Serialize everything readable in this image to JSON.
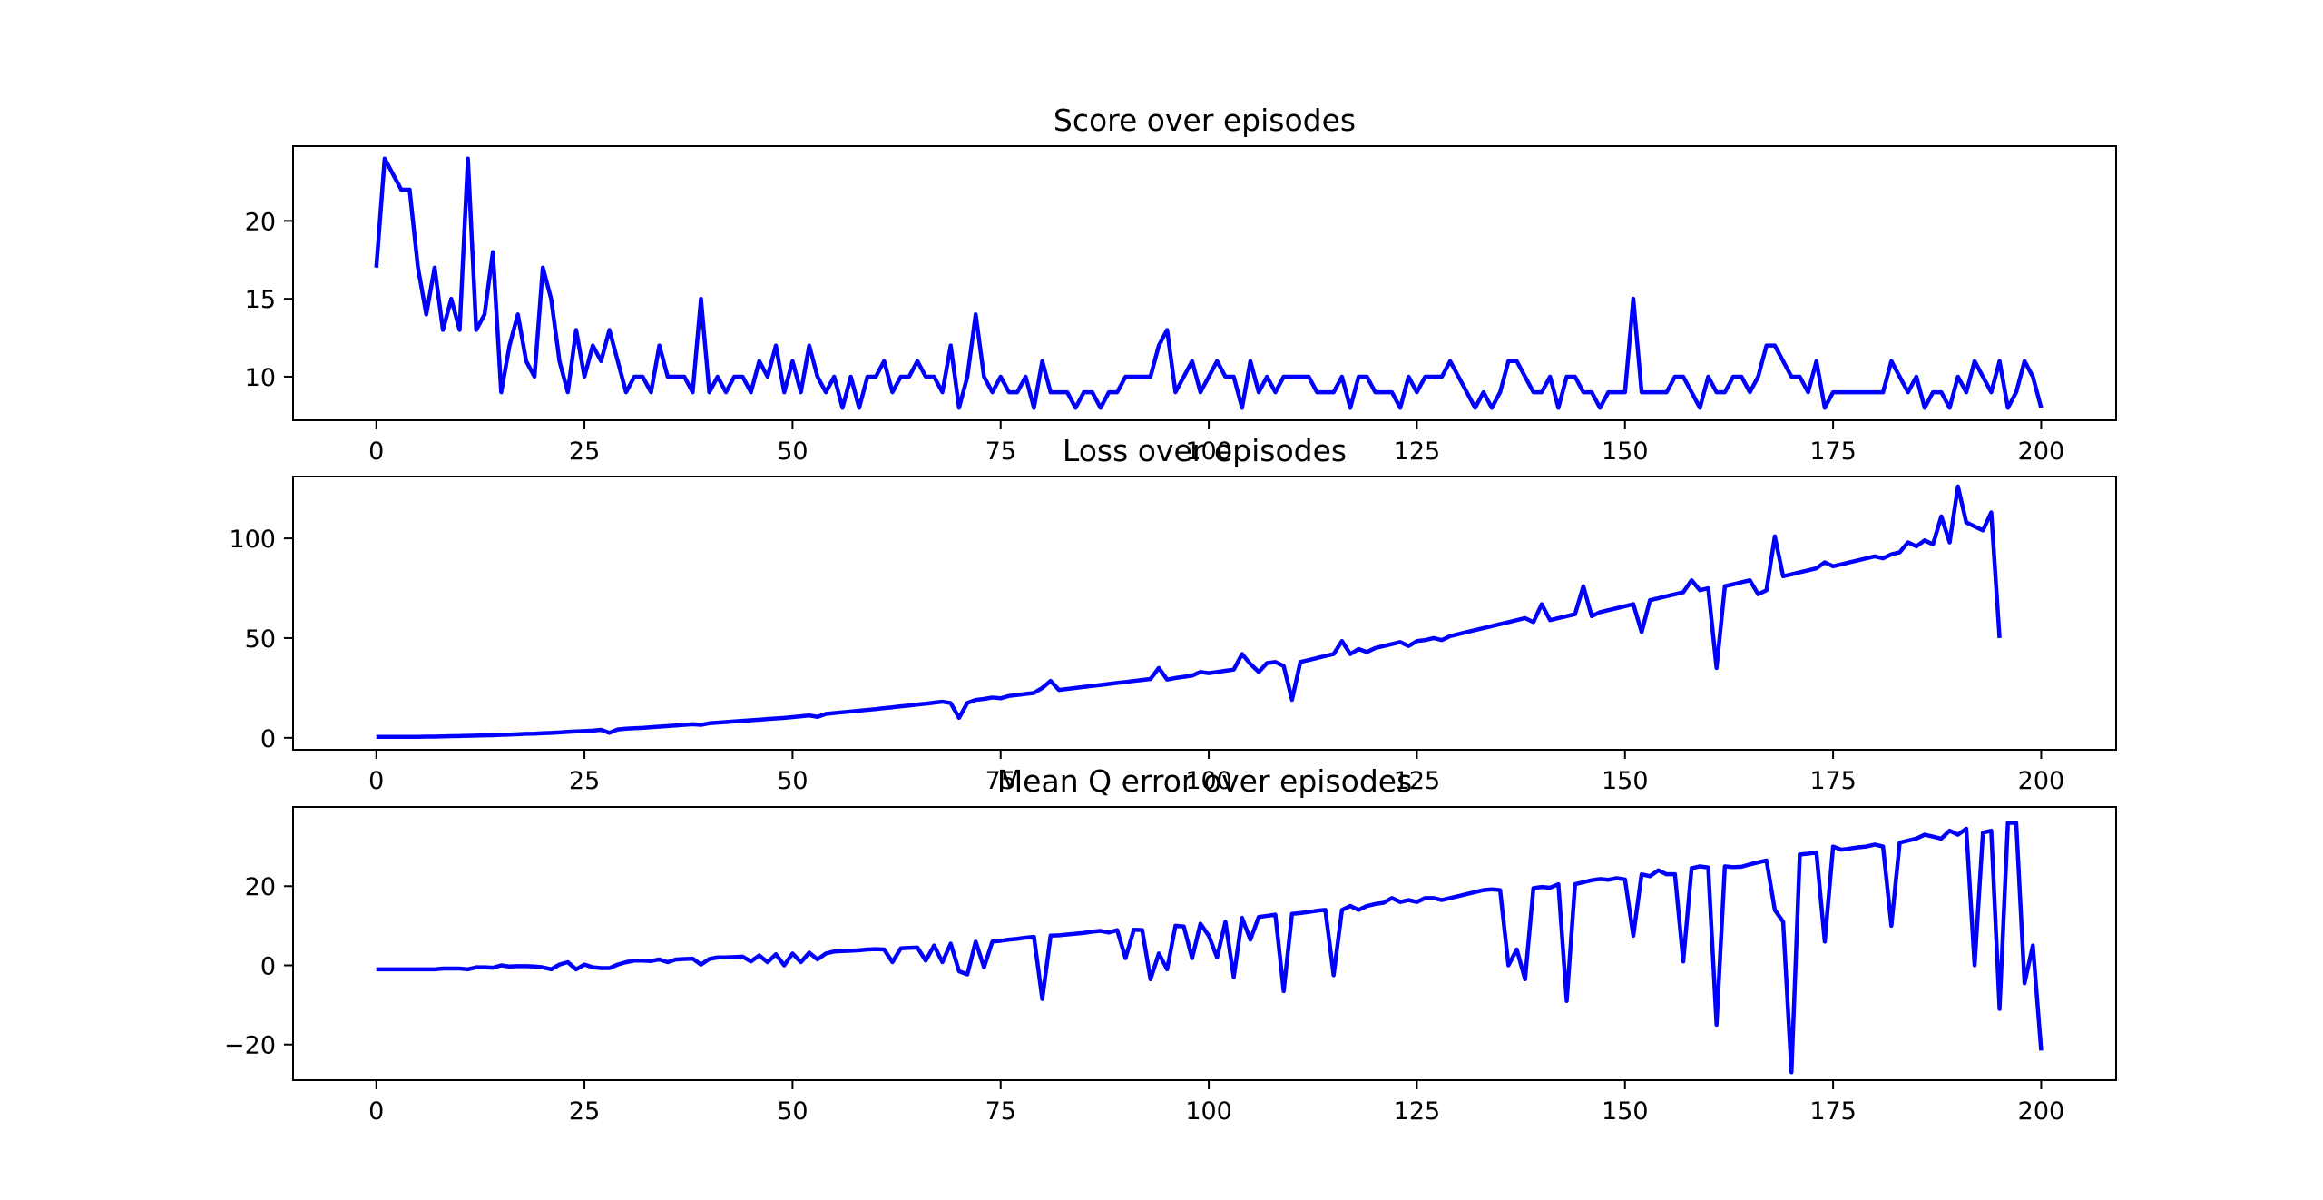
{
  "chart_data": [
    {
      "type": "line",
      "title": "Score over episodes",
      "xlabel": "",
      "ylabel": "",
      "xlim": [
        -10,
        209
      ],
      "ylim": [
        7.2,
        24.8
      ],
      "xticks": [
        "0",
        "25",
        "50",
        "75",
        "100",
        "125",
        "150",
        "175",
        "200"
      ],
      "yticks": [
        "10",
        "15",
        "20"
      ],
      "grid": false,
      "color": "#0000ff",
      "x_start": 0,
      "values": [
        17,
        24,
        23,
        22,
        22,
        17,
        14,
        17,
        13,
        15,
        13,
        24,
        13,
        14,
        18,
        9,
        12,
        14,
        11,
        10,
        17,
        15,
        11,
        9,
        13,
        10,
        12,
        11,
        13,
        11,
        9,
        10,
        10,
        9,
        12,
        10,
        10,
        10,
        9,
        15,
        9,
        10,
        9,
        10,
        10,
        9,
        11,
        10,
        12,
        9,
        11,
        9,
        12,
        10,
        9,
        10,
        8,
        10,
        8,
        10,
        10,
        11,
        9,
        10,
        10,
        11,
        10,
        10,
        9,
        12,
        8,
        10,
        14,
        10,
        9,
        10,
        9,
        9,
        10,
        8,
        11,
        9,
        9,
        9,
        8,
        9,
        9,
        8,
        9,
        9,
        10,
        10,
        10,
        10,
        12,
        13,
        9,
        10,
        11,
        9,
        10,
        11,
        10,
        10,
        8,
        11,
        9,
        10,
        9,
        10,
        10,
        10,
        10,
        9,
        9,
        9,
        10,
        8,
        10,
        10,
        9,
        9,
        9,
        8,
        10,
        9,
        10,
        10,
        10,
        11,
        10,
        9,
        8,
        9,
        8,
        9,
        11,
        11,
        10,
        9,
        9,
        10,
        8,
        10,
        10,
        9,
        9,
        8,
        9,
        9,
        9,
        15,
        9,
        9,
        9,
        9,
        10,
        10,
        9,
        8,
        10,
        9,
        9,
        10,
        10,
        9,
        10,
        12,
        12,
        11,
        10,
        10,
        9,
        11,
        8,
        9,
        9,
        9,
        9,
        9,
        9,
        9,
        11,
        10,
        9,
        10,
        8,
        9,
        9,
        8,
        10,
        9,
        11,
        10,
        9,
        11,
        8,
        9,
        11,
        10,
        8
      ]
    },
    {
      "type": "line",
      "title": "Loss over episodes",
      "xlabel": "",
      "ylabel": "",
      "xlim": [
        -10,
        209
      ],
      "ylim": [
        -6,
        131
      ],
      "xticks": [
        "0",
        "25",
        "50",
        "75",
        "100",
        "125",
        "150",
        "175",
        "200"
      ],
      "yticks": [
        "0",
        "50",
        "100"
      ],
      "grid": false,
      "color": "#0000ff",
      "x_start": 0,
      "values": [
        0.5,
        0.5,
        0.5,
        0.5,
        0.5,
        0.5,
        0.6,
        0.6,
        0.7,
        0.8,
        0.9,
        1,
        1.1,
        1.2,
        1.3,
        1.5,
        1.6,
        1.8,
        2,
        2.1,
        2.3,
        2.5,
        2.7,
        3,
        3.2,
        3.4,
        3.6,
        4,
        2.5,
        4.2,
        4.6,
        4.8,
        5,
        5.3,
        5.6,
        5.9,
        6.2,
        6.5,
        6.8,
        6.5,
        7.3,
        7.6,
        7.9,
        8.2,
        8.5,
        8.8,
        9.1,
        9.4,
        9.7,
        10,
        10.4,
        10.8,
        11.2,
        10.5,
        12,
        12.4,
        12.8,
        13.2,
        13.6,
        14,
        14.4,
        14.9,
        15.3,
        15.8,
        16.2,
        16.7,
        17.1,
        17.6,
        18.1,
        17.4,
        10,
        17.5,
        19,
        19.5,
        20.2,
        19.8,
        21,
        21.5,
        22,
        22.5,
        25,
        28.5,
        24,
        24.5,
        25,
        25.5,
        26,
        26.5,
        27,
        27.5,
        28,
        28.5,
        29,
        29.5,
        35,
        29.2,
        30,
        30.6,
        31.2,
        33,
        32.4,
        33,
        33.6,
        34.2,
        42,
        37,
        33,
        37.5,
        38,
        36,
        19,
        38,
        39,
        40,
        41,
        42,
        48.5,
        42,
        44.5,
        43,
        45,
        46,
        47,
        48,
        46,
        48.5,
        49,
        50,
        49,
        51,
        52,
        53,
        54,
        55,
        56,
        57,
        58,
        59,
        60,
        58,
        67,
        59,
        60,
        61,
        62,
        76,
        61,
        63,
        64,
        65,
        66,
        67,
        53,
        69,
        70,
        71,
        72,
        73,
        79,
        74,
        75,
        35,
        76,
        77,
        78,
        79,
        72,
        74,
        101,
        81,
        82,
        83,
        84,
        85,
        88,
        86,
        87,
        88,
        89,
        90,
        91,
        90,
        92,
        93,
        98,
        96,
        99,
        97,
        111,
        98,
        126,
        108,
        106,
        104,
        113,
        50
      ]
    },
    {
      "type": "line",
      "title": "Mean Q error over episodes",
      "xlabel": "",
      "ylabel": "",
      "xlim": [
        -10,
        209
      ],
      "ylim": [
        -29,
        40
      ],
      "xticks": [
        "0",
        "25",
        "50",
        "75",
        "100",
        "125",
        "150",
        "175",
        "200"
      ],
      "yticks": [
        "−20",
        "0",
        "20"
      ],
      "grid": false,
      "color": "#0000ff",
      "x_start": 0,
      "values": [
        -1,
        -1,
        -1,
        -1,
        -1,
        -1,
        -1,
        -1,
        -0.8,
        -0.8,
        -0.8,
        -1,
        -0.5,
        -0.5,
        -0.6,
        0,
        -0.3,
        -0.2,
        -0.2,
        -0.3,
        -0.5,
        -1,
        0.2,
        0.8,
        -1,
        0.2,
        -0.5,
        -0.7,
        -0.7,
        0.2,
        0.8,
        1.2,
        1.2,
        1.1,
        1.5,
        0.8,
        1.5,
        1.6,
        1.7,
        0.2,
        1.6,
        2,
        2,
        2.1,
        2.2,
        1,
        2.5,
        0.8,
        2.8,
        0,
        3,
        0.8,
        3.2,
        1.5,
        3,
        3.5,
        3.6,
        3.7,
        3.8,
        4,
        4.1,
        4,
        0.8,
        4.3,
        4.4,
        4.5,
        1.2,
        5,
        0.8,
        5.5,
        -1.5,
        -2.3,
        6,
        -0.5,
        6,
        6.2,
        6.5,
        6.7,
        7,
        7.2,
        -8.5,
        7.5,
        7.6,
        7.8,
        8,
        8.2,
        8.5,
        8.7,
        8.3,
        8.9,
        1.8,
        9,
        8.9,
        -3.5,
        3,
        -1,
        10,
        9.8,
        1.8,
        10.5,
        7.5,
        2,
        11,
        -3,
        12,
        6.5,
        12.2,
        12.5,
        12.8,
        -6.5,
        13,
        13.2,
        13.5,
        13.8,
        14,
        -2.5,
        14,
        15,
        14,
        15,
        15.5,
        15.8,
        17,
        16,
        16.5,
        16,
        17,
        17,
        16.5,
        17,
        17.5,
        18,
        18.5,
        19,
        19.2,
        19,
        0,
        4,
        -3.5,
        19.5,
        19.8,
        19.6,
        20.5,
        -9,
        20.5,
        21,
        21.5,
        21.8,
        21.6,
        22,
        21.7,
        7.5,
        23,
        22.5,
        24,
        23,
        23,
        1,
        24.5,
        25,
        24.7,
        -15,
        25,
        24.8,
        24.9,
        25.5,
        26,
        26.5,
        14,
        11,
        -27,
        28,
        28.2,
        28.5,
        6,
        30,
        29.2,
        29.5,
        29.8,
        30,
        30.5,
        30,
        10,
        31,
        31.5,
        32,
        33,
        32.5,
        32,
        34,
        33,
        34.5,
        0,
        33.5,
        34,
        -11,
        36,
        36,
        -4.5,
        5,
        -21.5
      ]
    }
  ]
}
